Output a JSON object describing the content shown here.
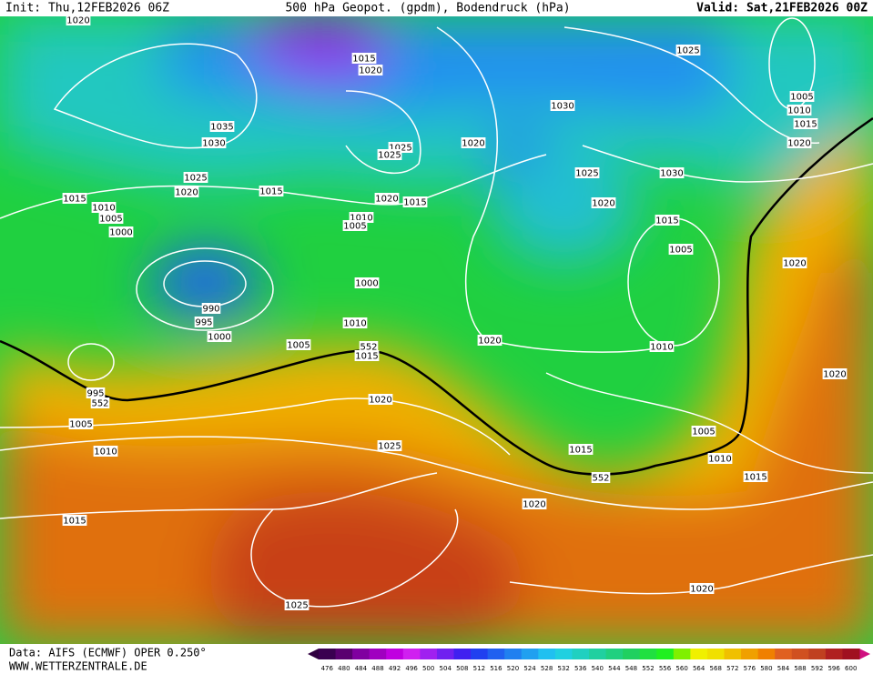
{
  "header": {
    "init": "Init: Thu,12FEB2026 06Z",
    "title": "500 hPa Geopot. (gpdm), Bodendruck (hPa)",
    "valid": "Valid: Sat,21FEB2026 00Z"
  },
  "footer": {
    "data": "Data: AIFS (ECMWF) OPER 0.250°",
    "site": "WWW.WETTERZENTRALE.DE"
  },
  "colorbar": {
    "ticks": [
      476,
      480,
      484,
      488,
      492,
      496,
      500,
      504,
      508,
      512,
      516,
      520,
      524,
      528,
      532,
      536,
      540,
      544,
      548,
      552,
      556,
      560,
      564,
      568,
      572,
      576,
      580,
      584,
      588,
      592,
      596,
      600
    ]
  },
  "isobar_labels": [
    "1020",
    "1015",
    "1020",
    "1025",
    "1005",
    "1010",
    "1015",
    "1020",
    "1035",
    "1030",
    "1030",
    "1025",
    "1025",
    "1020",
    "1025",
    "1030",
    "1025",
    "1020",
    "1015",
    "1020",
    "1015",
    "1020",
    "1015",
    "1010",
    "1005",
    "1000",
    "1010",
    "1005",
    "1015",
    "1005",
    "1020",
    "1000",
    "990",
    "995",
    "1000",
    "1010",
    "1005",
    "552",
    "1015",
    "1020",
    "1010",
    "995",
    "552",
    "1020",
    "1020",
    "1005",
    "1005",
    "1010",
    "1025",
    "1015",
    "1010",
    "552",
    "1015",
    "1020",
    "1015",
    "1025",
    "1020"
  ]
}
